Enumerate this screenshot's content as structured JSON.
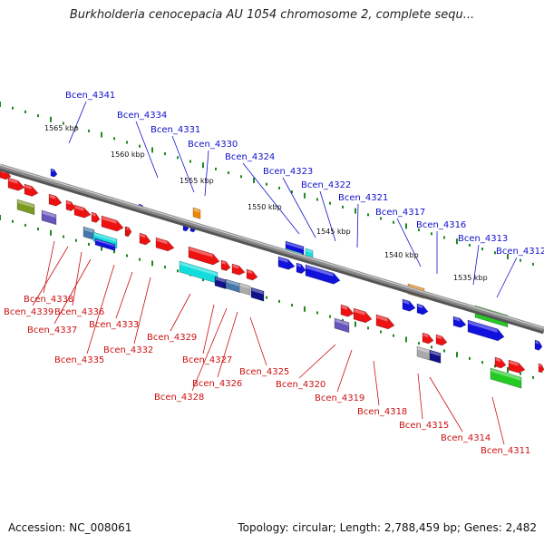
{
  "title": "Burkholderia cenocepacia AU 1054 chromosome 2, complete sequ...",
  "footer": {
    "accession": "Accession: NC_008061",
    "topology": "Topology: circular; Length: 2,788,459 bp; Genes: 2,482"
  },
  "colors": {
    "backbone": "#8a8a8a",
    "tick": "#1e8a1e",
    "label_blue": "#1111cc",
    "label_red": "#cc1111",
    "gene_red": "#ee1111",
    "gene_blue": "#1111dd",
    "gene_cyan": "#11dddd",
    "gene_green": "#22cc22",
    "gene_orange": "#ee8800",
    "gene_olive": "#7a9a22",
    "gene_slate": "#6655bb",
    "gene_navy": "#111188",
    "gene_steel": "#4477aa",
    "gene_gray": "#aaaaaa"
  },
  "scale_labels": [
    "1565 kbp",
    "1560 kbp",
    "1555 kbp",
    "1550 kbp",
    "1545 kbp",
    "1540 kbp",
    "1535 kbp"
  ],
  "genes_top": [
    "Bcen_4341",
    "Bcen_4334",
    "Bcen_4331",
    "Bcen_4330",
    "Bcen_4324",
    "Bcen_4323",
    "Bcen_4322",
    "Bcen_4321",
    "Bcen_4317",
    "Bcen_4316",
    "Bcen_4313",
    "Bcen_4312"
  ],
  "genes_bottom": [
    "Bcen_4338",
    "Bcen_4339",
    "Bcen_4336",
    "Bcen_4337",
    "Bcen_4333",
    "Bcen_4335",
    "Bcen_4332",
    "Bcen_4329",
    "Bcen_4327",
    "Bcen_4328",
    "Bcen_4326",
    "Bcen_4325",
    "Bcen_4320",
    "Bcen_4319",
    "Bcen_4318",
    "Bcen_4315",
    "Bcen_4314",
    "Bcen_4311"
  ]
}
